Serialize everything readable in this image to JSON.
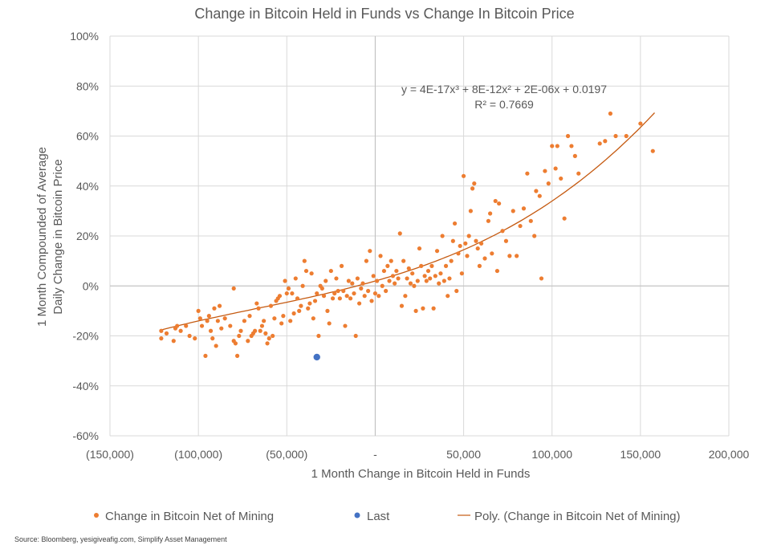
{
  "chart_data": {
    "type": "scatter",
    "title": "Change in Bitcoin Held in Funds vs Change In Bitcoin Price",
    "xlabel": "1 Month Change in Bitcoin Held in Funds",
    "ylabel_lines": [
      "1 Month Compounded of Average",
      "Daily Change in Bitcoin Price"
    ],
    "xlim": [
      -150000,
      200000
    ],
    "ylim": [
      -0.6,
      1.0
    ],
    "x_tick_labels": [
      "(150,000)",
      "(100,000)",
      "(50,000)",
      "-",
      "50,000",
      "100,000",
      "150,000",
      "200,000"
    ],
    "y_tick_labels": [
      "-60%",
      "-40%",
      "-20%",
      "0%",
      "20%",
      "40%",
      "60%",
      "80%",
      "100%"
    ],
    "equation": "y = 4E-17x³ + 8E-12x² + 2E-06x + 0.0197",
    "r_squared": "R² = 0.7669",
    "trendline": {
      "name": "Poly. (Change in Bitcoin Net of Mining)",
      "coefficients": [
        4e-17,
        8e-12,
        2e-06,
        0.0197
      ],
      "x_range": [
        -122000,
        158000
      ],
      "color": "#C55A11"
    },
    "series": [
      {
        "name": "Change in Bitcoin Net of Mining",
        "color": "#ED7D31",
        "points": [
          [
            -121000,
            -0.21
          ],
          [
            -121000,
            -0.18
          ],
          [
            -118000,
            -0.19
          ],
          [
            -114000,
            -0.22
          ],
          [
            -113000,
            -0.17
          ],
          [
            -112000,
            -0.16
          ],
          [
            -110000,
            -0.18
          ],
          [
            -107000,
            -0.16
          ],
          [
            -105000,
            -0.2
          ],
          [
            -102000,
            -0.21
          ],
          [
            -100000,
            -0.1
          ],
          [
            -99000,
            -0.13
          ],
          [
            -98000,
            -0.16
          ],
          [
            -96000,
            -0.28
          ],
          [
            -95000,
            -0.14
          ],
          [
            -94000,
            -0.12
          ],
          [
            -93000,
            -0.18
          ],
          [
            -92000,
            -0.21
          ],
          [
            -91000,
            -0.09
          ],
          [
            -90000,
            -0.24
          ],
          [
            -89000,
            -0.14
          ],
          [
            -88000,
            -0.08
          ],
          [
            -87000,
            -0.17
          ],
          [
            -85000,
            -0.13
          ],
          [
            -82000,
            -0.16
          ],
          [
            -80000,
            -0.22
          ],
          [
            -80000,
            -0.01
          ],
          [
            -79000,
            -0.23
          ],
          [
            -78000,
            -0.28
          ],
          [
            -77000,
            -0.2
          ],
          [
            -76000,
            -0.18
          ],
          [
            -74000,
            -0.14
          ],
          [
            -72000,
            -0.22
          ],
          [
            -71000,
            -0.12
          ],
          [
            -70000,
            -0.2
          ],
          [
            -69000,
            -0.19
          ],
          [
            -68000,
            -0.18
          ],
          [
            -67000,
            -0.07
          ],
          [
            -66000,
            -0.09
          ],
          [
            -65000,
            -0.18
          ],
          [
            -64000,
            -0.16
          ],
          [
            -63000,
            -0.14
          ],
          [
            -62000,
            -0.19
          ],
          [
            -61000,
            -0.23
          ],
          [
            -60000,
            -0.21
          ],
          [
            -59000,
            -0.08
          ],
          [
            -58000,
            -0.2
          ],
          [
            -57000,
            -0.13
          ],
          [
            -56000,
            -0.06
          ],
          [
            -55000,
            -0.05
          ],
          [
            -54000,
            -0.04
          ],
          [
            -53000,
            -0.15
          ],
          [
            -52000,
            -0.12
          ],
          [
            -51000,
            0.02
          ],
          [
            -50000,
            -0.03
          ],
          [
            -49000,
            -0.01
          ],
          [
            -48000,
            -0.14
          ],
          [
            -47000,
            -0.03
          ],
          [
            -46000,
            -0.11
          ],
          [
            -45000,
            0.03
          ],
          [
            -44000,
            -0.05
          ],
          [
            -43000,
            -0.1
          ],
          [
            -42000,
            -0.08
          ],
          [
            -41000,
            0.0
          ],
          [
            -40000,
            0.1
          ],
          [
            -39000,
            0.06
          ],
          [
            -38000,
            -0.09
          ],
          [
            -37000,
            -0.07
          ],
          [
            -36000,
            0.05
          ],
          [
            -35000,
            -0.13
          ],
          [
            -34000,
            -0.06
          ],
          [
            -33000,
            -0.03
          ],
          [
            -32000,
            -0.2
          ],
          [
            -31000,
            0.0
          ],
          [
            -30000,
            -0.01
          ],
          [
            -29000,
            -0.04
          ],
          [
            -28000,
            0.02
          ],
          [
            -27000,
            -0.1
          ],
          [
            -26000,
            -0.15
          ],
          [
            -25000,
            0.06
          ],
          [
            -24000,
            -0.05
          ],
          [
            -23000,
            -0.03
          ],
          [
            -22000,
            0.03
          ],
          [
            -21000,
            -0.02
          ],
          [
            -20000,
            -0.05
          ],
          [
            -19000,
            0.08
          ],
          [
            -18000,
            -0.02
          ],
          [
            -17000,
            -0.16
          ],
          [
            -16000,
            -0.04
          ],
          [
            -15000,
            0.02
          ],
          [
            -14000,
            -0.05
          ],
          [
            -13000,
            0.01
          ],
          [
            -12000,
            -0.03
          ],
          [
            -11000,
            -0.2
          ],
          [
            -10000,
            0.03
          ],
          [
            -9000,
            -0.07
          ],
          [
            -8000,
            -0.01
          ],
          [
            -7000,
            0.01
          ],
          [
            -6000,
            -0.04
          ],
          [
            -5000,
            0.1
          ],
          [
            -4000,
            -0.02
          ],
          [
            -3000,
            0.14
          ],
          [
            -2000,
            -0.06
          ],
          [
            -1000,
            0.04
          ],
          [
            0,
            -0.03
          ],
          [
            1000,
            0.02
          ],
          [
            2000,
            -0.04
          ],
          [
            3000,
            0.12
          ],
          [
            4000,
            0.0
          ],
          [
            5000,
            0.06
          ],
          [
            6000,
            -0.02
          ],
          [
            7000,
            0.08
          ],
          [
            8000,
            0.02
          ],
          [
            9000,
            0.1
          ],
          [
            10000,
            0.04
          ],
          [
            11000,
            0.01
          ],
          [
            12000,
            0.06
          ],
          [
            13000,
            0.03
          ],
          [
            14000,
            0.21
          ],
          [
            15000,
            -0.08
          ],
          [
            16000,
            0.1
          ],
          [
            17000,
            -0.04
          ],
          [
            18000,
            0.03
          ],
          [
            19000,
            0.07
          ],
          [
            20000,
            0.01
          ],
          [
            21000,
            0.05
          ],
          [
            22000,
            0.0
          ],
          [
            23000,
            -0.1
          ],
          [
            24000,
            0.02
          ],
          [
            25000,
            0.15
          ],
          [
            26000,
            0.08
          ],
          [
            27000,
            -0.09
          ],
          [
            28000,
            0.04
          ],
          [
            29000,
            0.02
          ],
          [
            30000,
            0.06
          ],
          [
            31000,
            0.03
          ],
          [
            32000,
            0.08
          ],
          [
            33000,
            -0.09
          ],
          [
            34000,
            0.04
          ],
          [
            35000,
            0.14
          ],
          [
            36000,
            0.01
          ],
          [
            37000,
            0.05
          ],
          [
            38000,
            0.2
          ],
          [
            39000,
            0.02
          ],
          [
            40000,
            0.08
          ],
          [
            41000,
            -0.04
          ],
          [
            42000,
            0.03
          ],
          [
            43000,
            0.1
          ],
          [
            44000,
            0.18
          ],
          [
            45000,
            0.25
          ],
          [
            46000,
            -0.02
          ],
          [
            47000,
            0.13
          ],
          [
            48000,
            0.16
          ],
          [
            49000,
            0.05
          ],
          [
            50000,
            0.44
          ],
          [
            51000,
            0.17
          ],
          [
            52000,
            0.12
          ],
          [
            53000,
            0.2
          ],
          [
            54000,
            0.3
          ],
          [
            55000,
            0.39
          ],
          [
            56000,
            0.41
          ],
          [
            57000,
            0.18
          ],
          [
            58000,
            0.15
          ],
          [
            59000,
            0.08
          ],
          [
            60000,
            0.17
          ],
          [
            62000,
            0.11
          ],
          [
            64000,
            0.26
          ],
          [
            65000,
            0.29
          ],
          [
            66000,
            0.13
          ],
          [
            68000,
            0.34
          ],
          [
            69000,
            0.06
          ],
          [
            70000,
            0.33
          ],
          [
            72000,
            0.22
          ],
          [
            74000,
            0.18
          ],
          [
            76000,
            0.12
          ],
          [
            78000,
            0.3
          ],
          [
            80000,
            0.12
          ],
          [
            82000,
            0.24
          ],
          [
            84000,
            0.31
          ],
          [
            86000,
            0.45
          ],
          [
            88000,
            0.26
          ],
          [
            90000,
            0.2
          ],
          [
            91000,
            0.38
          ],
          [
            93000,
            0.36
          ],
          [
            94000,
            0.03
          ],
          [
            96000,
            0.46
          ],
          [
            98000,
            0.41
          ],
          [
            100000,
            0.56
          ],
          [
            102000,
            0.47
          ],
          [
            103000,
            0.56
          ],
          [
            105000,
            0.43
          ],
          [
            107000,
            0.27
          ],
          [
            109000,
            0.6
          ],
          [
            111000,
            0.56
          ],
          [
            113000,
            0.52
          ],
          [
            115000,
            0.45
          ],
          [
            127000,
            0.57
          ],
          [
            130000,
            0.58
          ],
          [
            133000,
            0.69
          ],
          [
            136000,
            0.6
          ],
          [
            142000,
            0.6
          ],
          [
            150000,
            0.65
          ],
          [
            157000,
            0.54
          ]
        ]
      },
      {
        "name": "Last",
        "color": "#4472C4",
        "points": [
          [
            -33000,
            -0.285
          ]
        ]
      }
    ],
    "legend_position": "bottom"
  },
  "source": "Source: Bloomberg, yesigiveafig.com, Simplify Asset Management"
}
